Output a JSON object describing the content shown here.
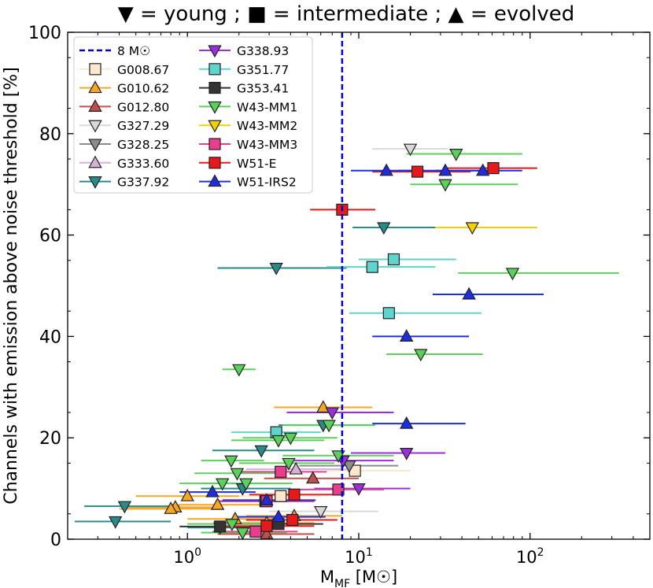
{
  "chart_data": {
    "type": "scatter",
    "title": "▼ = young ; ■ = intermediate ; ▲ = evolved",
    "xlabel_main": "M",
    "xlabel_sub": "MF",
    "xlabel_unit": " [M☉]",
    "ylabel": "Channels with emission above noise threshold [%]",
    "xscale": "log",
    "xlim": [
      0.2,
      500
    ],
    "ylim": [
      0,
      100
    ],
    "xticks": [
      {
        "value": 1,
        "label": "10",
        "exp": "0"
      },
      {
        "value": 10,
        "label": "10",
        "exp": "1"
      },
      {
        "value": 100,
        "label": "10",
        "exp": "2"
      }
    ],
    "yticks": [
      0,
      20,
      40,
      60,
      80,
      100
    ],
    "threshold": {
      "value": 8,
      "label": "8 M☉",
      "color": "#0000cc"
    },
    "legend_position": "top-left",
    "series": [
      {
        "name": "G008.67",
        "marker": "square",
        "color": "#fde8cf",
        "points": [
          [
            9.5,
            13.5,
            6.5,
            20
          ],
          [
            3.5,
            8.5,
            2,
            6
          ]
        ]
      },
      {
        "name": "G010.62",
        "marker": "triangle-up",
        "color": "#f5a623",
        "points": [
          [
            6.2,
            26,
            3.2,
            12
          ],
          [
            1.0,
            8.5,
            0.5,
            2
          ],
          [
            0.85,
            6.3,
            0.45,
            1.6
          ],
          [
            0.8,
            6,
            0.4,
            1.5
          ],
          [
            1.5,
            6.8,
            0.8,
            2.8
          ],
          [
            1.9,
            4,
            1,
            3.6
          ],
          [
            2.9,
            3.2,
            1.5,
            5.5
          ],
          [
            4.2,
            4.6,
            2.2,
            8
          ]
        ]
      },
      {
        "name": "G012.80",
        "marker": "triangle-up",
        "color": "#c0504d",
        "points": [
          [
            5.4,
            12,
            2.8,
            10
          ],
          [
            2.9,
            1,
            1.5,
            5.5
          ]
        ]
      },
      {
        "name": "G327.29",
        "marker": "triangle-down",
        "color": "#d9d9d9",
        "points": [
          [
            20,
            77,
            12,
            33
          ],
          [
            6,
            5.5,
            3,
            13
          ]
        ]
      },
      {
        "name": "G328.25",
        "marker": "triangle-down",
        "color": "#8c8c8c",
        "points": [
          [
            8.8,
            14.5,
            4.5,
            17
          ]
        ]
      },
      {
        "name": "G333.60",
        "marker": "triangle-up",
        "color": "#d7b0d7",
        "points": [
          [
            4.3,
            13.8,
            2.2,
            8.5
          ]
        ]
      },
      {
        "name": "G337.92",
        "marker": "triangle-down",
        "color": "#2a8a8a",
        "points": [
          [
            0.38,
            3.5,
            0.22,
            0.8
          ],
          [
            0.43,
            6.5,
            0.25,
            0.9
          ],
          [
            3.3,
            53.5,
            1.5,
            8.5
          ],
          [
            14,
            61.5,
            9.2,
            28
          ],
          [
            2.7,
            17.5,
            1.4,
            5.5
          ],
          [
            6.2,
            22.5,
            3.4,
            12
          ],
          [
            2.1,
            10,
            1.2,
            4
          ],
          [
            1.55,
            2.3,
            1,
            2.5
          ]
        ]
      },
      {
        "name": "G338.93",
        "marker": "triangle-down",
        "color": "#9b30d9",
        "points": [
          [
            7,
            25,
            3.8,
            16
          ],
          [
            19,
            17,
            9,
            32
          ],
          [
            10,
            10,
            5.5,
            20
          ],
          [
            8.1,
            15.5,
            4.2,
            16
          ]
        ]
      },
      {
        "name": "G351.77",
        "marker": "square",
        "color": "#5fd4cc",
        "points": [
          [
            16,
            55.2,
            10,
            37
          ],
          [
            12,
            53.7,
            6.5,
            28
          ],
          [
            15,
            44.6,
            8.8,
            52
          ],
          [
            3.3,
            21.1,
            1.8,
            6
          ]
        ]
      },
      {
        "name": "G353.41",
        "marker": "square",
        "color": "#333333",
        "points": [
          [
            1.55,
            2.5,
            0.9,
            2.8
          ],
          [
            2.85,
            7.5,
            1.5,
            5.5
          ],
          [
            3.4,
            3,
            1.8,
            6.2
          ]
        ]
      },
      {
        "name": "W43-MM1",
        "marker": "triangle-down",
        "color": "#5bd15b",
        "points": [
          [
            37,
            76,
            19,
            90
          ],
          [
            32,
            70,
            20,
            85
          ],
          [
            79,
            52.5,
            38,
            330
          ],
          [
            23,
            36.5,
            14.5,
            53
          ],
          [
            2.0,
            33.5,
            1.6,
            2.5
          ],
          [
            6.7,
            22.5,
            3.6,
            12.5
          ],
          [
            3.4,
            19.5,
            1.8,
            6.3
          ],
          [
            4.0,
            20,
            2.1,
            7.5
          ],
          [
            7.6,
            16.5,
            3.6,
            16
          ],
          [
            3.9,
            15,
            2.0,
            7.2
          ],
          [
            1.8,
            15.5,
            1.2,
            2.8
          ],
          [
            1.95,
            13,
            1.1,
            3.5
          ],
          [
            1.6,
            11,
            0.9,
            2.9
          ],
          [
            2.2,
            11,
            1.2,
            4.1
          ],
          [
            1.82,
            3,
            1,
            3.3
          ],
          [
            2.1,
            1.3,
            1.2,
            3.8
          ]
        ]
      },
      {
        "name": "W43-MM2",
        "marker": "triangle-down",
        "color": "#f5d000",
        "points": [
          [
            46,
            61.5,
            28,
            110
          ]
        ]
      },
      {
        "name": "W43-MM3",
        "marker": "square",
        "color": "#e83e8c",
        "points": [
          [
            3.5,
            13.3,
            1.9,
            6.5
          ],
          [
            2.9,
            7.5,
            1.5,
            5.5
          ],
          [
            7.6,
            9.8,
            4.2,
            14
          ],
          [
            2.5,
            1.5,
            1.4,
            4.4
          ]
        ]
      },
      {
        "name": "W51-E",
        "marker": "square",
        "color": "#e8191a",
        "points": [
          [
            22,
            72.5,
            12,
            45
          ],
          [
            61,
            73.2,
            33,
            110
          ],
          [
            8,
            65,
            5.2,
            12.5
          ],
          [
            4.2,
            8.8,
            2.3,
            7.8
          ],
          [
            2.9,
            2.6,
            1.5,
            5.5
          ],
          [
            4.1,
            3.8,
            2.2,
            7.5
          ]
        ]
      },
      {
        "name": "W51-IRS2",
        "marker": "triangle-up",
        "color": "#1f2de0",
        "points": [
          [
            14.5,
            72.7,
            9,
            22
          ],
          [
            32,
            72.7,
            17,
            65
          ],
          [
            53,
            72.7,
            28,
            90
          ],
          [
            44,
            48.3,
            27,
            120
          ],
          [
            19,
            40,
            12,
            44
          ],
          [
            19,
            22.8,
            12,
            42
          ],
          [
            1.4,
            9.3,
            0.9,
            2.5
          ],
          [
            3.4,
            4.4,
            1.9,
            6.4
          ],
          [
            2.9,
            7.7,
            1.6,
            5.6
          ]
        ]
      }
    ]
  }
}
